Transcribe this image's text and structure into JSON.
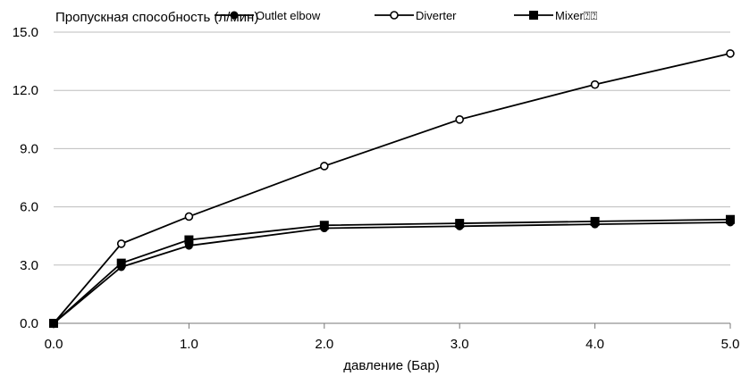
{
  "chart_data": {
    "type": "line",
    "ylabel": "Пропускная способность (л/мин)",
    "xlabel": "давление (Бар)",
    "x": [
      0.0,
      0.5,
      1.0,
      2.0,
      3.0,
      4.0,
      5.0
    ],
    "xlim": [
      0.0,
      5.0
    ],
    "ylim": [
      0.0,
      15.0
    ],
    "x_ticks": [
      {
        "value": 0.0,
        "label": "0.0"
      },
      {
        "value": 1.0,
        "label": "1.0"
      },
      {
        "value": 2.0,
        "label": "2.0"
      },
      {
        "value": 3.0,
        "label": "3.0"
      },
      {
        "value": 4.0,
        "label": "4.0"
      },
      {
        "value": 5.0,
        "label": "5.0"
      }
    ],
    "y_ticks": [
      {
        "value": 0.0,
        "label": "0.0"
      },
      {
        "value": 3.0,
        "label": "3.0"
      },
      {
        "value": 6.0,
        "label": "6.0"
      },
      {
        "value": 9.0,
        "label": "9.0"
      },
      {
        "value": 12.0,
        "label": "12.0"
      },
      {
        "value": 15.0,
        "label": "15.0"
      }
    ],
    "grid": "horizontal",
    "legend_position": "top",
    "series": [
      {
        "name": "Outlet elbow",
        "marker": "filled-circle",
        "values": [
          0.0,
          2.9,
          4.0,
          4.9,
          5.0,
          5.1,
          5.2
        ]
      },
      {
        "name": "Diverter",
        "marker": "open-circle",
        "values": [
          0.0,
          4.1,
          5.5,
          8.1,
          10.5,
          12.3,
          13.9
        ]
      },
      {
        "name": "Mixer⍰⍰",
        "marker": "filled-square",
        "values": [
          0.0,
          3.1,
          4.3,
          5.05,
          5.15,
          5.25,
          5.35
        ]
      }
    ]
  }
}
